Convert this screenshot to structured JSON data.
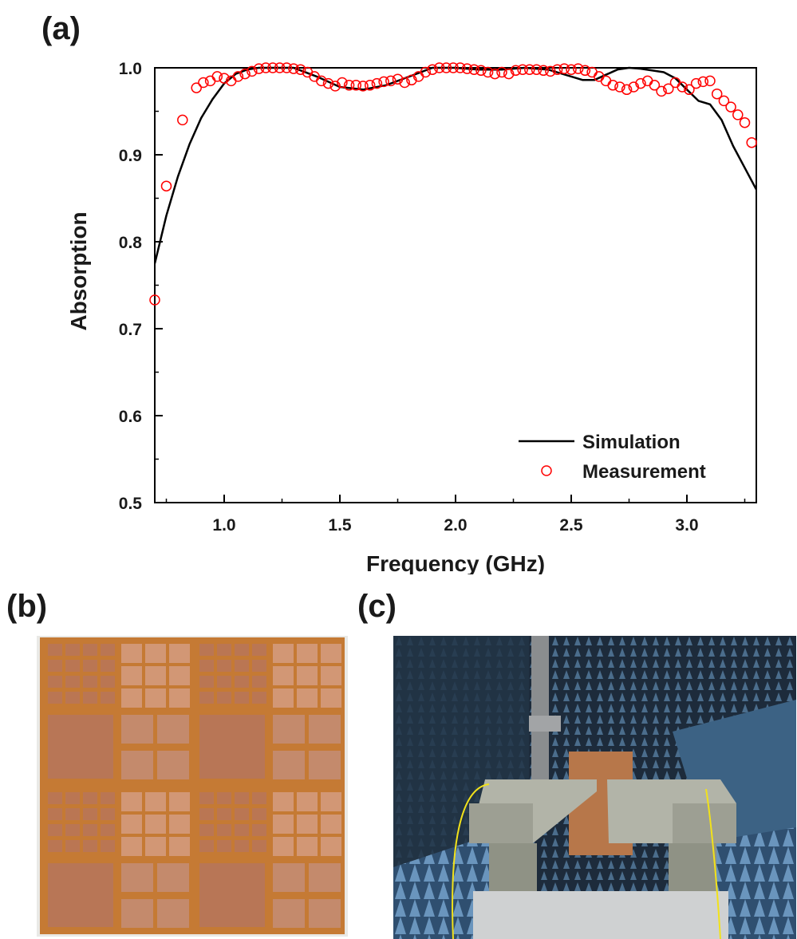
{
  "panels": {
    "a_label": "(a)",
    "b_label": "(b)",
    "c_label": "(c)"
  },
  "photos": {
    "b": {
      "description": "Fabricated absorber sample: copper patch array on orange flexible substrate, 2x2 tiled unit blocks",
      "colors": {
        "substrate": "#c8782e",
        "copper": "#b87656"
      }
    },
    "c": {
      "description": "Measurement setup in anechoic chamber with two horn antennas facing sample",
      "colors": {
        "absorber_foam": "#3b5a78",
        "horn": "#9a9c8c",
        "cable": "#f2e21a"
      }
    }
  },
  "chart_data": {
    "type": "line",
    "title": "",
    "xlabel": "Frequency (GHz)",
    "ylabel": "Absorption",
    "xlim": [
      0.7,
      3.3
    ],
    "ylim": [
      0.5,
      1.0
    ],
    "xticks": [
      1.0,
      1.5,
      2.0,
      2.5,
      3.0
    ],
    "xtick_labels": [
      "1.0",
      "1.5",
      "2.0",
      "2.5",
      "3.0"
    ],
    "yticks": [
      0.5,
      0.6,
      0.7,
      0.8,
      0.9,
      1.0
    ],
    "ytick_labels": [
      "0.5",
      "0.6",
      "0.7",
      "0.8",
      "0.9",
      "1.0"
    ],
    "grid": false,
    "legend_position": "lower right",
    "series": [
      {
        "name": "Simulation",
        "style": "line",
        "color": "#000000",
        "x": [
          0.7,
          0.75,
          0.8,
          0.85,
          0.9,
          0.95,
          1.0,
          1.05,
          1.1,
          1.15,
          1.2,
          1.3,
          1.4,
          1.5,
          1.6,
          1.7,
          1.8,
          1.9,
          2.0,
          2.1,
          2.2,
          2.3,
          2.4,
          2.5,
          2.55,
          2.6,
          2.65,
          2.7,
          2.75,
          2.8,
          2.9,
          2.95,
          3.0,
          3.05,
          3.1,
          3.15,
          3.2,
          3.25,
          3.3
        ],
        "values": [
          0.775,
          0.83,
          0.875,
          0.912,
          0.942,
          0.964,
          0.982,
          0.993,
          0.998,
          1.0,
          1.0,
          1.0,
          0.99,
          0.978,
          0.975,
          0.98,
          0.99,
          1.0,
          1.0,
          0.998,
          0.998,
          1.0,
          0.998,
          0.99,
          0.986,
          0.986,
          0.992,
          0.998,
          1.0,
          0.999,
          0.995,
          0.988,
          0.975,
          0.962,
          0.958,
          0.94,
          0.91,
          0.885,
          0.86
        ]
      },
      {
        "name": "Measurement",
        "style": "open-circle",
        "color": "#ff0000",
        "x": [
          0.7,
          0.75,
          0.82,
          0.88,
          0.91,
          0.94,
          0.97,
          1.0,
          1.03,
          1.06,
          1.09,
          1.12,
          1.15,
          1.18,
          1.21,
          1.24,
          1.27,
          1.3,
          1.33,
          1.36,
          1.39,
          1.42,
          1.45,
          1.48,
          1.51,
          1.54,
          1.57,
          1.6,
          1.63,
          1.66,
          1.69,
          1.72,
          1.75,
          1.78,
          1.81,
          1.84,
          1.87,
          1.9,
          1.93,
          1.96,
          1.99,
          2.02,
          2.05,
          2.08,
          2.11,
          2.14,
          2.17,
          2.2,
          2.23,
          2.26,
          2.29,
          2.32,
          2.35,
          2.38,
          2.41,
          2.44,
          2.47,
          2.5,
          2.53,
          2.56,
          2.59,
          2.62,
          2.65,
          2.68,
          2.71,
          2.74,
          2.77,
          2.8,
          2.83,
          2.86,
          2.89,
          2.92,
          2.95,
          2.98,
          3.01,
          3.04,
          3.07,
          3.1,
          3.13,
          3.16,
          3.19,
          3.22,
          3.25,
          3.28
        ],
        "values": [
          0.733,
          0.864,
          0.94,
          0.977,
          0.983,
          0.985,
          0.99,
          0.988,
          0.985,
          0.99,
          0.993,
          0.996,
          0.999,
          1.0,
          1.0,
          1.0,
          1.0,
          0.999,
          0.998,
          0.995,
          0.99,
          0.985,
          0.982,
          0.979,
          0.983,
          0.98,
          0.98,
          0.979,
          0.98,
          0.982,
          0.984,
          0.985,
          0.987,
          0.983,
          0.986,
          0.99,
          0.995,
          0.998,
          1.0,
          1.0,
          1.0,
          1.0,
          0.999,
          0.998,
          0.997,
          0.995,
          0.993,
          0.995,
          0.993,
          0.997,
          0.998,
          0.998,
          0.998,
          0.997,
          0.996,
          0.998,
          0.999,
          0.998,
          0.999,
          0.997,
          0.995,
          0.99,
          0.985,
          0.98,
          0.978,
          0.975,
          0.978,
          0.982,
          0.985,
          0.98,
          0.973,
          0.976,
          0.983,
          0.978,
          0.975,
          0.982,
          0.984,
          0.985,
          0.97,
          0.962,
          0.955,
          0.946,
          0.937,
          0.914
        ]
      }
    ]
  }
}
